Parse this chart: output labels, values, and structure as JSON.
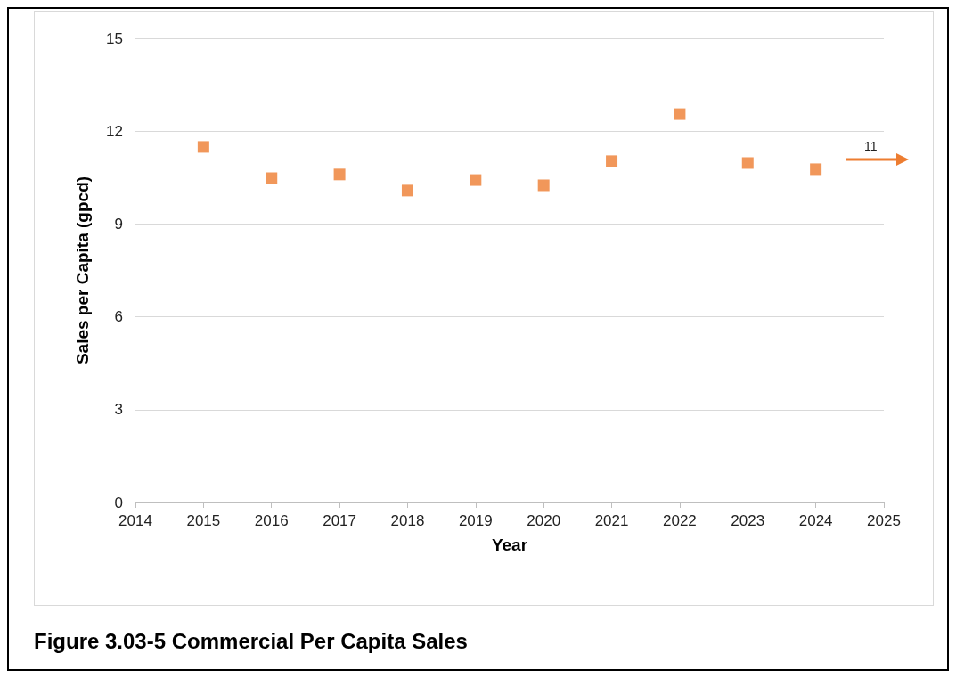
{
  "chart_data": {
    "type": "scatter",
    "title": "Figure 3.03-5  Commercial Per Capita Sales",
    "xlabel": "Year",
    "ylabel": "Sales per Capita (gpcd)",
    "x": [
      2015,
      2016,
      2017,
      2018,
      2019,
      2020,
      2021,
      2022,
      2023,
      2024
    ],
    "series": [
      {
        "color": "#ed7d31",
        "values": [
          11.49,
          10.48,
          10.6,
          10.08,
          10.42,
          10.25,
          11.03,
          12.55,
          10.97,
          10.77
        ]
      }
    ],
    "xlim": [
      2014,
      2025
    ],
    "xticks": [
      2014,
      2015,
      2016,
      2017,
      2018,
      2019,
      2020,
      2021,
      2022,
      2023,
      2024,
      2025
    ],
    "ylim": [
      0,
      15
    ],
    "yticks": [
      0,
      3,
      6,
      9,
      12,
      15
    ],
    "grid": "y",
    "marker": "square",
    "annotations": [
      "11"
    ]
  }
}
